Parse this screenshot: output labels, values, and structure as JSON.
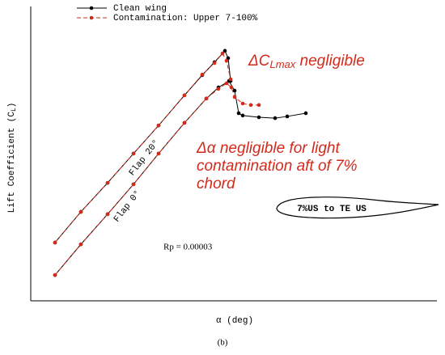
{
  "chart_data": {
    "type": "line",
    "xlabel": "α (deg)",
    "ylabel": [
      "Lift Coefficient (C",
      "L",
      ")"
    ],
    "xlim": [
      0,
      100
    ],
    "ylim": [
      0,
      100
    ],
    "legend": "top",
    "series": [
      {
        "name": "Clean wing",
        "color": "#000000",
        "dash": false,
        "x": [
          6,
          12.4,
          19,
          25.4,
          31.6,
          38,
          42.4,
          45.4,
          48,
          48.8,
          49.4,
          null,
          6,
          12.4,
          19,
          25.4,
          31.6,
          38,
          43.4,
          46.4,
          49,
          50.4,
          51.4,
          52.4,
          56.4,
          60.4,
          63.4,
          68
        ],
        "values": [
          19.9,
          30.4,
          40.3,
          50.3,
          59.9,
          70.2,
          77.1,
          81.5,
          85.4,
          82.9,
          75.1,
          null,
          8.8,
          19.3,
          29.6,
          39.8,
          50.3,
          60.8,
          69.1,
          72.9,
          75.1,
          71.8,
          64.1,
          63.3,
          62.7,
          62.4,
          63.0,
          64.1
        ]
      },
      {
        "name": "Contamination: Upper 7-100%",
        "color": "#d42a1c",
        "dash": true,
        "x": [
          6,
          12.4,
          19,
          25.4,
          31.6,
          38,
          42.4,
          45.4,
          47.4,
          48.4,
          49.4,
          null,
          6,
          12.4,
          19,
          25.4,
          31.6,
          38,
          43.4,
          46.4,
          48.4,
          49.6,
          50.4,
          52.4,
          54.4,
          56.4
        ],
        "values": [
          19.9,
          30.4,
          40.3,
          50.3,
          59.9,
          70.2,
          77.3,
          81.2,
          84.5,
          82.0,
          75.7,
          null,
          8.8,
          19.3,
          29.6,
          39.8,
          50.3,
          60.8,
          69.1,
          72.4,
          74.3,
          72.9,
          69.6,
          67.4,
          66.9,
          66.9
        ]
      }
    ],
    "annotations": {
      "clmax": [
        "ΔC",
        "Lmax",
        " negligible"
      ],
      "alpha": [
        "Δα negligible for light",
        "contamination aft of 7%",
        "chord"
      ],
      "flap20": "Flap 20°",
      "flap0": "Flap 0°",
      "rp": "Rp = 0.00003",
      "airfoil": "7%US to TE US"
    },
    "caption": "(b)"
  }
}
